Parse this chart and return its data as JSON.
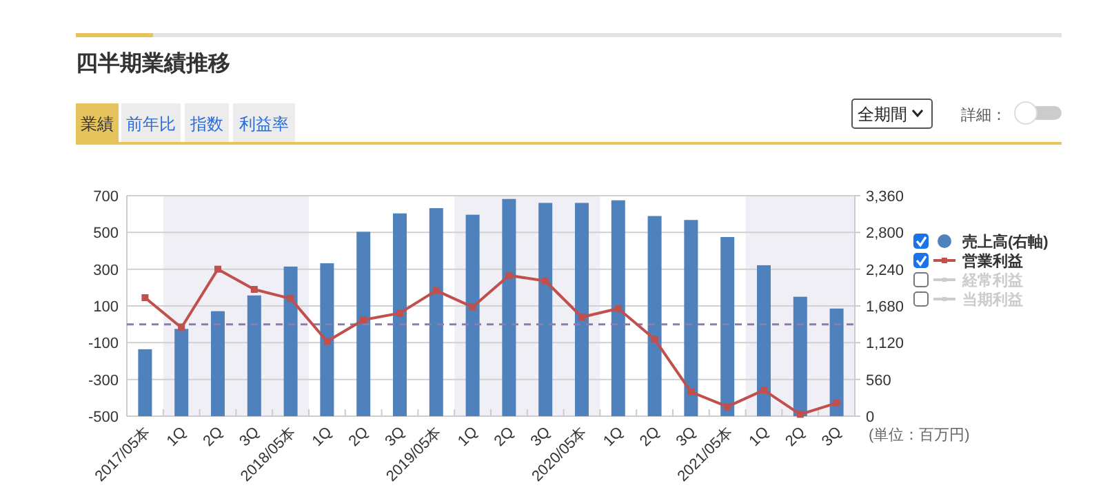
{
  "chart_data": {
    "type": "bar",
    "title": "四半期業績推移",
    "annotations": [
      "業績",
      "前年比",
      "指数",
      "利益率",
      "全期間",
      "詳細：",
      "(単位：百万円)"
    ],
    "categories": [
      "2017/05本",
      "1Q",
      "2Q",
      "3Q",
      "2018/05本",
      "1Q",
      "2Q",
      "3Q",
      "2019/05本",
      "1Q",
      "2Q",
      "3Q",
      "2020/05本",
      "1Q",
      "2Q",
      "3Q",
      "2021/05本",
      "1Q",
      "2Q",
      "3Q"
    ],
    "series": [
      {
        "name": "売上高(右軸)",
        "axis": "y2",
        "color": "#4f81bd",
        "values": [
          1020,
          1330,
          1600,
          1840,
          2280,
          2330,
          2810,
          3090,
          3170,
          3070,
          3310,
          3250,
          3250,
          3290,
          3050,
          2990,
          2730,
          2300,
          1820,
          1640
        ]
      },
      {
        "name": "営業利益",
        "type": "line",
        "color": "#c0504d",
        "values": [
          145,
          -18,
          300,
          190,
          140,
          -93,
          24,
          61,
          184,
          94,
          266,
          236,
          39,
          86,
          -81,
          -368,
          -448,
          -358,
          -490,
          -428
        ]
      },
      {
        "name": "経常利益",
        "type": "line",
        "color": "#cccccc",
        "values": [
          null,
          null,
          null,
          null,
          null,
          null,
          null,
          null,
          null,
          null,
          null,
          null,
          null,
          null,
          null,
          null,
          null,
          null,
          null,
          null
        ]
      },
      {
        "name": "当期利益",
        "type": "line",
        "color": "#cccccc",
        "values": [
          null,
          null,
          null,
          null,
          null,
          null,
          null,
          null,
          null,
          null,
          null,
          null,
          null,
          null,
          null,
          null,
          null,
          null,
          null,
          null
        ]
      }
    ],
    "ylim": [
      -500,
      700
    ],
    "yticks": [
      -500,
      -300,
      -100,
      100,
      300,
      500,
      700
    ],
    "y2lim": [
      0,
      3360
    ],
    "y2ticks": [
      {
        "value": 0,
        "label": "0"
      },
      {
        "value": 560,
        "label": "560"
      },
      {
        "value": 1120,
        "label": "1,120"
      },
      {
        "value": 1680,
        "label": "1,680"
      },
      {
        "value": 2240,
        "label": "2,240"
      },
      {
        "value": 2800,
        "label": "2,800"
      },
      {
        "value": 3360,
        "label": "3,360"
      }
    ],
    "ref_lines": [
      {
        "axis": "y",
        "value": 0,
        "color": "#8e7cb0",
        "line_style": "dashed"
      }
    ],
    "grid": "y",
    "legend": "right",
    "marker": "square",
    "line_style": "solid"
  }
}
